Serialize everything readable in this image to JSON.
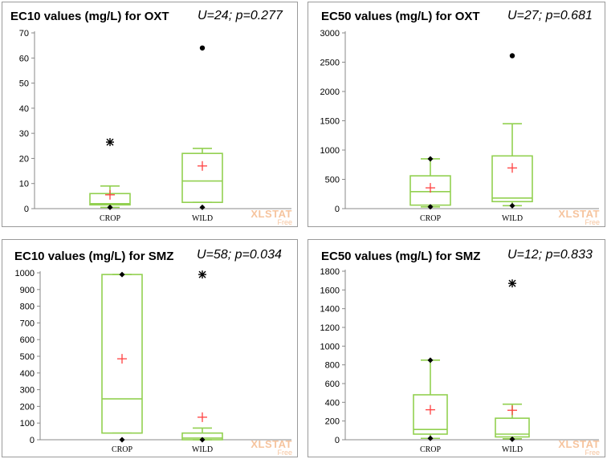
{
  "chart_data": [
    {
      "type": "box",
      "title": "EC10 values (mg/L) for OXT",
      "stat_text": "U=24; p=0.277",
      "ylim": [
        0,
        70
      ],
      "yticks": [
        0,
        10,
        20,
        30,
        40,
        50,
        60,
        70
      ],
      "categories": [
        "CROP",
        "WILD"
      ],
      "boxes": [
        {
          "category": "CROP",
          "whisker_low": 0.5,
          "q1": 1.5,
          "median": 2,
          "q3": 6,
          "whisker_high": 9,
          "mean": 5.5,
          "min": 0.5,
          "max": 26.5,
          "outliers": [
            26.5
          ],
          "outlier_style": "asterisk"
        },
        {
          "category": "WILD",
          "whisker_low": 2.5,
          "q1": 2.5,
          "median": 11,
          "q3": 22,
          "whisker_high": 24,
          "mean": 17,
          "min": 0.5,
          "max": 64,
          "outliers": [
            64
          ],
          "outlier_style": "dot"
        }
      ],
      "watermark": {
        "brand": "XLSTAT",
        "sub": "Free"
      }
    },
    {
      "type": "box",
      "title": "EC50 values (mg/L) for OXT",
      "stat_text": "U=27; p=0.681",
      "ylim": [
        0,
        3000
      ],
      "yticks": [
        0,
        500,
        1000,
        1500,
        2000,
        2500,
        3000
      ],
      "categories": [
        "CROP",
        "WILD"
      ],
      "boxes": [
        {
          "category": "CROP",
          "whisker_low": 30,
          "q1": 60,
          "median": 290,
          "q3": 560,
          "whisker_high": 850,
          "mean": 355,
          "min": 30,
          "max": 850,
          "outliers": [],
          "outlier_style": "none"
        },
        {
          "category": "WILD",
          "whisker_low": 50,
          "q1": 120,
          "median": 180,
          "q3": 900,
          "whisker_high": 1450,
          "mean": 695,
          "min": 50,
          "max": 2610,
          "outliers": [
            2610
          ],
          "outlier_style": "dot"
        }
      ],
      "watermark": {
        "brand": "XLSTAT",
        "sub": "Free"
      }
    },
    {
      "type": "box",
      "title": "EC10 values (mg/L) for SMZ",
      "stat_text": "U=58; p=0.034",
      "ylim": [
        0,
        1000
      ],
      "yticks": [
        0,
        100,
        200,
        300,
        400,
        500,
        600,
        700,
        800,
        900,
        1000
      ],
      "categories": [
        "CROP",
        "WILD"
      ],
      "boxes": [
        {
          "category": "CROP",
          "whisker_low": 40,
          "q1": 40,
          "median": 245,
          "q3": 990,
          "whisker_high": 990,
          "mean": 485,
          "min": 0,
          "max": 990,
          "outliers": [],
          "outlier_style": "none"
        },
        {
          "category": "WILD",
          "whisker_low": 0,
          "q1": 0,
          "median": 10,
          "q3": 40,
          "whisker_high": 70,
          "mean": 135,
          "min": 0,
          "max": 990,
          "outliers": [
            990
          ],
          "outlier_style": "asterisk"
        }
      ],
      "watermark": {
        "brand": "XLSTAT",
        "sub": "Free"
      }
    },
    {
      "type": "box",
      "title": "EC50 values (mg/L) for SMZ",
      "stat_text": "U=12; p=0.833",
      "ylim": [
        0,
        1800
      ],
      "yticks": [
        0,
        200,
        400,
        600,
        800,
        1000,
        1200,
        1400,
        1600,
        1800
      ],
      "categories": [
        "CROP",
        "WILD"
      ],
      "boxes": [
        {
          "category": "CROP",
          "whisker_low": 15,
          "q1": 60,
          "median": 110,
          "q3": 480,
          "whisker_high": 850,
          "mean": 320,
          "min": 15,
          "max": 850,
          "outliers": [],
          "outlier_style": "none"
        },
        {
          "category": "WILD",
          "whisker_low": 10,
          "q1": 30,
          "median": 60,
          "q3": 230,
          "whisker_high": 380,
          "mean": 315,
          "min": 5,
          "max": 1670,
          "outliers": [
            1670
          ],
          "outlier_style": "asterisk"
        }
      ],
      "watermark": {
        "brand": "XLSTAT",
        "sub": "Free"
      }
    }
  ],
  "colors": {
    "box": "#92d050",
    "mean": "#ff4040",
    "point": "#000000",
    "axis": "#888888",
    "watermark": "#f6c49e"
  }
}
